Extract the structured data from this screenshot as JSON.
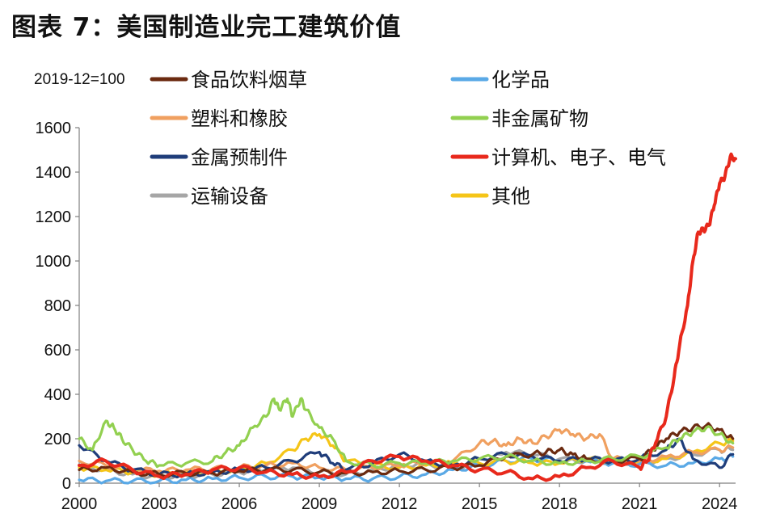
{
  "title": "图表 7：美国制造业完工建筑价值",
  "chart_data": {
    "type": "line",
    "title": "图表 7：美国制造业完工建筑价值",
    "unit_label": "2019-12=100",
    "xlabel": "",
    "ylabel": "",
    "xlim": [
      2000,
      2024.6
    ],
    "ylim": [
      0,
      1600
    ],
    "x_ticks": [
      "2000",
      "2003",
      "2006",
      "2009",
      "2012",
      "2015",
      "2018",
      "2021",
      "2024"
    ],
    "y_ticks": [
      "0",
      "200",
      "400",
      "600",
      "800",
      "1000",
      "1200",
      "1400",
      "1600"
    ],
    "grid": false,
    "legend_position": "top",
    "series": [
      {
        "name": "食品饮料烟草",
        "color": "#6b2a10",
        "x": [
          2000,
          2001,
          2002,
          2003,
          2004,
          2005,
          2006,
          2007,
          2008,
          2009,
          2010,
          2011,
          2012,
          2013,
          2014,
          2015,
          2016,
          2017,
          2017.5,
          2018,
          2018.5,
          2019,
          2020,
          2021,
          2021.5,
          2022,
          2022.5,
          2023,
          2023.5,
          2024,
          2024.5
        ],
        "y": [
          60,
          70,
          50,
          40,
          45,
          45,
          55,
          60,
          60,
          50,
          45,
          50,
          55,
          60,
          70,
          80,
          120,
          130,
          140,
          150,
          130,
          110,
          100,
          110,
          150,
          200,
          230,
          250,
          260,
          240,
          200
        ]
      },
      {
        "name": "化学品",
        "color": "#5aa9e6",
        "x": [
          2000,
          2001,
          2002,
          2003,
          2004,
          2005,
          2006,
          2007,
          2008,
          2009,
          2010,
          2011,
          2012,
          2013,
          2014,
          2015,
          2016,
          2017,
          2018,
          2019,
          2020,
          2021,
          2022,
          2023,
          2024,
          2024.5
        ],
        "y": [
          15,
          10,
          10,
          10,
          15,
          20,
          25,
          30,
          30,
          25,
          20,
          20,
          30,
          40,
          60,
          80,
          100,
          110,
          100,
          100,
          90,
          85,
          80,
          90,
          110,
          120
        ]
      },
      {
        "name": "塑料和橡胶",
        "color": "#f0a060",
        "x": [
          2000,
          2001,
          2002,
          2003,
          2004,
          2005,
          2006,
          2007,
          2008,
          2009,
          2010,
          2011,
          2012,
          2013,
          2014,
          2015,
          2015.5,
          2016,
          2016.5,
          2017,
          2017.5,
          2018,
          2018.5,
          2019,
          2019.5,
          2020,
          2021,
          2022,
          2023,
          2024,
          2024.5
        ],
        "y": [
          100,
          80,
          60,
          55,
          60,
          65,
          70,
          80,
          90,
          70,
          60,
          70,
          80,
          90,
          100,
          180,
          190,
          170,
          200,
          180,
          210,
          240,
          220,
          200,
          220,
          110,
          100,
          120,
          140,
          150,
          160
        ]
      },
      {
        "name": "非金属矿物",
        "color": "#92d050",
        "x": [
          2000,
          2000.5,
          2001,
          2001.3,
          2001.6,
          2002,
          2002.5,
          2003,
          2004,
          2005,
          2005.5,
          2006,
          2006.5,
          2007,
          2007.3,
          2007.5,
          2007.8,
          2008,
          2008.3,
          2008.5,
          2009,
          2009.5,
          2010,
          2011,
          2012,
          2013,
          2014,
          2015,
          2016,
          2017,
          2018,
          2019,
          2020,
          2021,
          2022,
          2022.5,
          2023,
          2023.5,
          2024,
          2024.5
        ],
        "y": [
          200,
          150,
          280,
          250,
          200,
          150,
          100,
          80,
          90,
          100,
          140,
          170,
          250,
          300,
          380,
          330,
          380,
          300,
          380,
          330,
          250,
          200,
          100,
          80,
          90,
          90,
          100,
          110,
          120,
          100,
          90,
          100,
          110,
          120,
          160,
          200,
          230,
          250,
          220,
          180
        ]
      },
      {
        "name": "金属预制件",
        "color": "#1f3d7a",
        "x": [
          2000,
          2001,
          2002,
          2003,
          2004,
          2005,
          2006,
          2007,
          2008,
          2009,
          2009.5,
          2010,
          2011,
          2012,
          2013,
          2014,
          2015,
          2016,
          2017,
          2018,
          2019,
          2020,
          2021,
          2022,
          2022.5,
          2023,
          2024,
          2024.5
        ],
        "y": [
          170,
          100,
          60,
          40,
          40,
          50,
          60,
          70,
          100,
          140,
          90,
          60,
          90,
          130,
          100,
          80,
          110,
          130,
          120,
          100,
          110,
          100,
          110,
          150,
          200,
          110,
          70,
          130
        ]
      },
      {
        "name": "计算机、电子、电气",
        "color": "#e8291c",
        "x": [
          2000,
          2001,
          2002,
          2003,
          2004,
          2005,
          2006,
          2007,
          2008,
          2009,
          2010,
          2011,
          2012,
          2013,
          2014,
          2015,
          2016,
          2017,
          2018,
          2019,
          2020,
          2021,
          2021.3,
          2021.6,
          2022,
          2022.3,
          2022.5,
          2022.8,
          2023,
          2023.2,
          2023.4,
          2023.6,
          2023.8,
          2024,
          2024.2,
          2024.4,
          2024.6
        ],
        "y": [
          80,
          100,
          60,
          30,
          40,
          60,
          70,
          50,
          40,
          30,
          50,
          100,
          120,
          100,
          80,
          60,
          50,
          20,
          30,
          70,
          100,
          70,
          100,
          180,
          300,
          480,
          620,
          800,
          1000,
          1130,
          1140,
          1160,
          1250,
          1350,
          1380,
          1470,
          1460
        ]
      },
      {
        "name": "运输设备",
        "color": "#a6a6a6",
        "x": [
          2000,
          2001,
          2002,
          2003,
          2004,
          2005,
          2006,
          2007,
          2008,
          2009,
          2010,
          2011,
          2012,
          2013,
          2014,
          2015,
          2016,
          2017,
          2018,
          2019,
          2020,
          2021,
          2022,
          2023,
          2024,
          2024.5
        ],
        "y": [
          80,
          60,
          40,
          30,
          35,
          40,
          50,
          60,
          70,
          50,
          40,
          60,
          80,
          90,
          70,
          80,
          140,
          130,
          110,
          100,
          100,
          90,
          110,
          130,
          150,
          150
        ]
      },
      {
        "name": "其他",
        "color": "#f5c518",
        "x": [
          2000,
          2001,
          2002,
          2003,
          2004,
          2005,
          2006,
          2007,
          2008,
          2008.5,
          2009,
          2009.5,
          2010,
          2011,
          2012,
          2013,
          2014,
          2015,
          2016,
          2017,
          2018,
          2019,
          2020,
          2021,
          2022,
          2023,
          2024,
          2024.5
        ],
        "y": [
          70,
          60,
          50,
          40,
          45,
          50,
          60,
          90,
          150,
          200,
          220,
          170,
          100,
          80,
          70,
          80,
          90,
          90,
          100,
          90,
          90,
          110,
          100,
          100,
          110,
          140,
          180,
          190
        ]
      }
    ]
  }
}
